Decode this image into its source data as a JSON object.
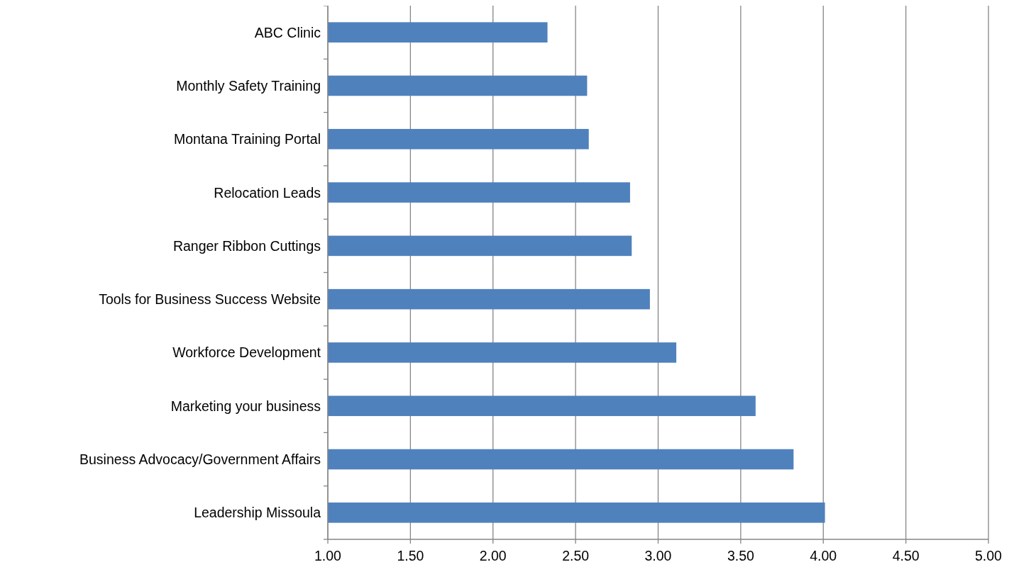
{
  "chart_data": {
    "type": "bar",
    "orientation": "horizontal",
    "categories": [
      "ABC Clinic",
      "Monthly Safety Training",
      "Montana Training Portal",
      "Relocation Leads",
      "Ranger Ribbon Cuttings",
      "Tools for Business Success Website",
      "Workforce Development",
      "Marketing your business",
      "Business Advocacy/Government Affairs",
      "Leadership Missoula"
    ],
    "values": [
      2.33,
      2.57,
      2.58,
      2.83,
      2.84,
      2.95,
      3.11,
      3.59,
      3.82,
      4.01
    ],
    "color": "#4f81bd",
    "xlim": [
      1,
      5
    ],
    "xticks": [
      {
        "value": 1,
        "label": "1.00"
      },
      {
        "value": 1.5,
        "label": "1.50"
      },
      {
        "value": 2,
        "label": "2.00"
      },
      {
        "value": 2.5,
        "label": "2.50"
      },
      {
        "value": 3,
        "label": "3.00"
      },
      {
        "value": 3.5,
        "label": "3.50"
      },
      {
        "value": 4,
        "label": "4.00"
      },
      {
        "value": 4.5,
        "label": "4.50"
      },
      {
        "value": 5,
        "label": "5.00"
      }
    ],
    "grid": "x"
  }
}
